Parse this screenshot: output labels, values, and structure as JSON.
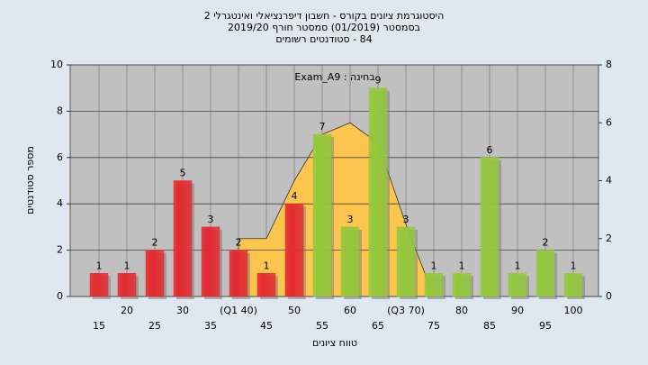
{
  "chart_data": {
    "type": "bar",
    "title": "היסטוגרמת ציונים בקורס - חשבון דיפרנציאלי ואינטגרלי 2",
    "subtitle": "בסמסטר (01/2019) סמסטר חורף 2019/20",
    "subtitle2": "84 - סטודנטים רשומים",
    "annotation": "בחינה : Exam_A9",
    "x_label": "טווח ציונים",
    "y_label": "מספר סטודנטים",
    "categories": [
      "15",
      "20",
      "25",
      "30",
      "35",
      "(Q1 40)",
      "45",
      "50",
      "55",
      "60",
      "65",
      "(Q3 70)",
      "75",
      "80",
      "85",
      "90",
      "95",
      "100"
    ],
    "values": [
      1,
      1,
      2,
      5,
      3,
      2,
      1,
      4,
      7,
      3,
      9,
      3,
      1,
      1,
      6,
      1,
      2,
      1
    ],
    "colors": [
      "#e52a2f",
      "#e52a2f",
      "#e52a2f",
      "#e52a2f",
      "#e52a2f",
      "#e52a2f",
      "#e52a2f",
      "#e52a2f",
      "#94c83c",
      "#94c83c",
      "#94c83c",
      "#94c83c",
      "#94c83c",
      "#94c83c",
      "#94c83c",
      "#94c83c",
      "#94c83c",
      "#94c83c"
    ],
    "area": {
      "axis": "y2",
      "color": "#fcc64e",
      "values": [
        null,
        null,
        null,
        null,
        null,
        2,
        2,
        4,
        5.6,
        6,
        5.3,
        2.5,
        0,
        null,
        null,
        null,
        null,
        null
      ]
    },
    "ylim": [
      0,
      10
    ],
    "yticks": [
      0,
      2,
      4,
      6,
      8,
      10
    ],
    "y2lim": [
      0,
      8
    ],
    "y2ticks": [
      0,
      2,
      4,
      6,
      8
    ],
    "grid": true
  }
}
